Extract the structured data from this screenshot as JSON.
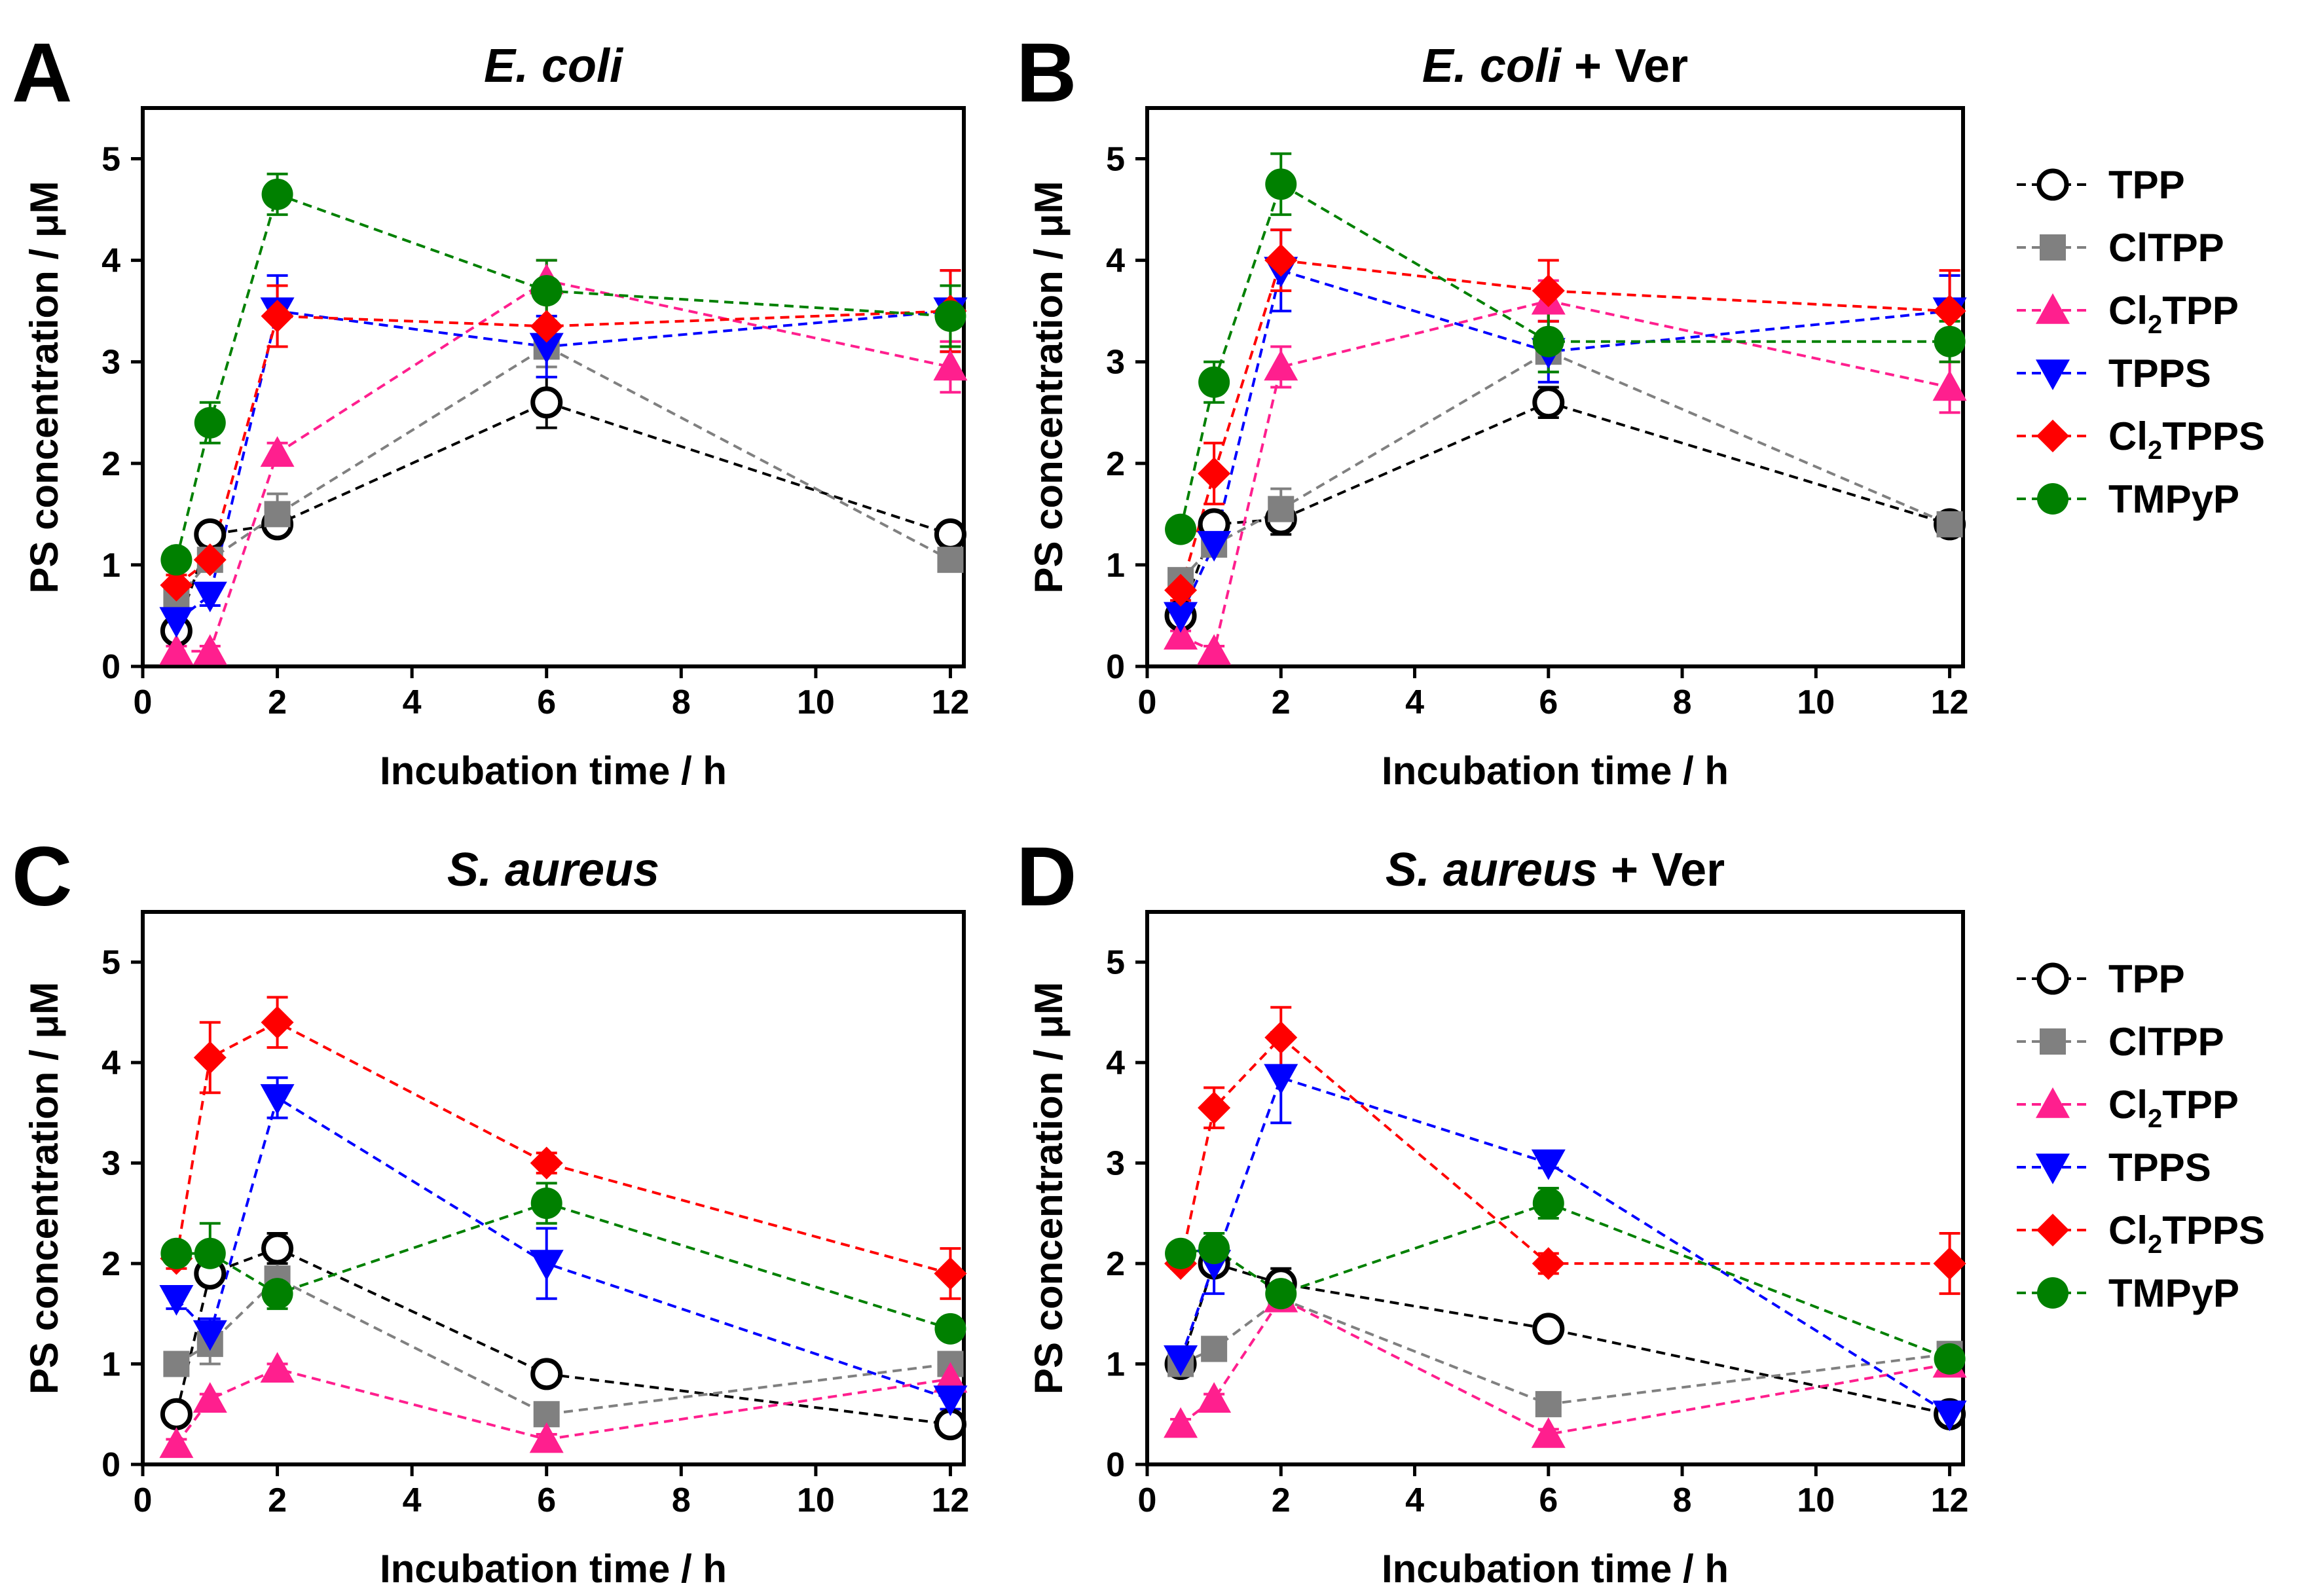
{
  "chart_data": [
    {
      "type": "line",
      "panel_letter": "A",
      "title": {
        "italic": "E. coli",
        "normal": ""
      },
      "xlabel": "Incubation time / h",
      "ylabel": "PS concentration / μM",
      "xlim": [
        0,
        12.2
      ],
      "ylim": [
        0,
        5.5
      ],
      "xticks": [
        0,
        2,
        4,
        6,
        8,
        10,
        12
      ],
      "xtick_labels": [
        "0",
        "2",
        "4",
        "6",
        "8",
        "10",
        "12"
      ],
      "yticks": [
        0,
        1,
        2,
        3,
        4,
        5
      ],
      "ytick_labels": [
        "0",
        "1",
        "2",
        "3",
        "4",
        "5"
      ],
      "x": [
        0.5,
        1,
        2,
        6,
        12
      ],
      "series": [
        {
          "name": "TPP",
          "values": [
            0.35,
            1.3,
            1.4,
            2.6,
            1.3
          ],
          "errors": [
            0.1,
            0.1,
            0.1,
            0.25,
            0.05
          ]
        },
        {
          "name": "ClTPP",
          "values": [
            0.65,
            1.05,
            1.5,
            3.15,
            1.05
          ],
          "errors": [
            0.1,
            0.1,
            0.2,
            0.2,
            0.05
          ]
        },
        {
          "name": "Cl2TPP",
          "values": [
            0.15,
            0.15,
            2.1,
            3.8,
            2.95
          ],
          "errors": [
            0.05,
            0.05,
            0.1,
            0.2,
            0.25
          ]
        },
        {
          "name": "TPPS",
          "values": [
            0.45,
            0.7,
            3.5,
            3.15,
            3.5
          ],
          "errors": [
            0.1,
            0.1,
            0.35,
            0.3,
            0.4
          ]
        },
        {
          "name": "Cl2TPPS",
          "values": [
            0.8,
            1.05,
            3.45,
            3.35,
            3.5
          ],
          "errors": [
            0.1,
            0.1,
            0.3,
            0.3,
            0.4
          ]
        },
        {
          "name": "TMPyP",
          "values": [
            1.05,
            2.4,
            4.65,
            3.7,
            3.45
          ],
          "errors": [
            0.1,
            0.2,
            0.2,
            0.3,
            0.3
          ]
        }
      ]
    },
    {
      "type": "line",
      "panel_letter": "B",
      "title": {
        "italic": "E. coli",
        "normal": " + Ver"
      },
      "xlabel": "Incubation time / h",
      "ylabel": "PS concentration / μM",
      "xlim": [
        0,
        12.2
      ],
      "ylim": [
        0,
        5.5
      ],
      "xticks": [
        0,
        2,
        4,
        6,
        8,
        10,
        12
      ],
      "xtick_labels": [
        "0",
        "2",
        "4",
        "6",
        "8",
        "10",
        "12"
      ],
      "yticks": [
        0,
        1,
        2,
        3,
        4,
        5
      ],
      "ytick_labels": [
        "0",
        "1",
        "2",
        "3",
        "4",
        "5"
      ],
      "x": [
        0.5,
        1,
        2,
        6,
        12
      ],
      "series": [
        {
          "name": "TPP",
          "values": [
            0.5,
            1.4,
            1.45,
            2.6,
            1.4
          ],
          "errors": [
            0.1,
            0.1,
            0.15,
            0.15,
            0.05
          ]
        },
        {
          "name": "ClTPP",
          "values": [
            0.85,
            1.2,
            1.55,
            3.1,
            1.4
          ],
          "errors": [
            0.1,
            0.1,
            0.2,
            0.2,
            0.05
          ]
        },
        {
          "name": "Cl2TPP",
          "values": [
            0.3,
            0.15,
            2.95,
            3.6,
            2.75
          ],
          "errors": [
            0.05,
            0.05,
            0.2,
            0.2,
            0.25
          ]
        },
        {
          "name": "TPPS",
          "values": [
            0.5,
            1.2,
            3.9,
            3.1,
            3.5
          ],
          "errors": [
            0.1,
            0.1,
            0.4,
            0.3,
            0.35
          ]
        },
        {
          "name": "Cl2TPPS",
          "values": [
            0.75,
            1.9,
            4.0,
            3.7,
            3.5
          ],
          "errors": [
            0.1,
            0.3,
            0.3,
            0.3,
            0.4
          ]
        },
        {
          "name": "TMPyP",
          "values": [
            1.35,
            2.8,
            4.75,
            3.2,
            3.2
          ],
          "errors": [
            0.1,
            0.2,
            0.3,
            0.3,
            0.2
          ]
        }
      ]
    },
    {
      "type": "line",
      "panel_letter": "C",
      "title": {
        "italic": "S. aureus",
        "normal": ""
      },
      "xlabel": "Incubation time / h",
      "ylabel": "PS concentration / μM",
      "xlim": [
        0,
        12.2
      ],
      "ylim": [
        0,
        5.5
      ],
      "xticks": [
        0,
        2,
        4,
        6,
        8,
        10,
        12
      ],
      "xtick_labels": [
        "0",
        "2",
        "4",
        "6",
        "8",
        "10",
        "12"
      ],
      "yticks": [
        0,
        1,
        2,
        3,
        4,
        5
      ],
      "ytick_labels": [
        "0",
        "1",
        "2",
        "3",
        "4",
        "5"
      ],
      "x": [
        0.5,
        1,
        2,
        6,
        12
      ],
      "series": [
        {
          "name": "TPP",
          "values": [
            0.5,
            1.9,
            2.15,
            0.9,
            0.4
          ],
          "errors": [
            0.05,
            0.1,
            0.15,
            0.05,
            0.05
          ]
        },
        {
          "name": "ClTPP",
          "values": [
            1.0,
            1.2,
            1.85,
            0.5,
            1.0
          ],
          "errors": [
            0.05,
            0.2,
            0.2,
            0.05,
            0.05
          ]
        },
        {
          "name": "Cl2TPP",
          "values": [
            0.2,
            0.65,
            0.95,
            0.25,
            0.85
          ],
          "errors": [
            0.05,
            0.05,
            0.05,
            0.05,
            0.1
          ]
        },
        {
          "name": "TPPS",
          "values": [
            1.65,
            1.3,
            3.65,
            2.0,
            0.65
          ],
          "errors": [
            0.1,
            0.15,
            0.2,
            0.35,
            0.1
          ]
        },
        {
          "name": "Cl2TPPS",
          "values": [
            2.05,
            4.05,
            4.4,
            3.0,
            1.9
          ],
          "errors": [
            0.1,
            0.35,
            0.25,
            0.1,
            0.25
          ]
        },
        {
          "name": "TMPyP",
          "values": [
            2.1,
            2.1,
            1.7,
            2.6,
            1.35
          ],
          "errors": [
            0.05,
            0.3,
            0.15,
            0.2,
            0.1
          ]
        }
      ]
    },
    {
      "type": "line",
      "panel_letter": "D",
      "title": {
        "italic": "S. aureus",
        "normal": " + Ver"
      },
      "xlabel": "Incubation time / h",
      "ylabel": "PS concentration / μM",
      "xlim": [
        0,
        12.2
      ],
      "ylim": [
        0,
        5.5
      ],
      "xticks": [
        0,
        2,
        4,
        6,
        8,
        10,
        12
      ],
      "xtick_labels": [
        "0",
        "2",
        "4",
        "6",
        "8",
        "10",
        "12"
      ],
      "yticks": [
        0,
        1,
        2,
        3,
        4,
        5
      ],
      "ytick_labels": [
        "0",
        "1",
        "2",
        "3",
        "4",
        "5"
      ],
      "x": [
        0.5,
        1,
        2,
        6,
        12
      ],
      "series": [
        {
          "name": "TPP",
          "values": [
            1.0,
            2.0,
            1.8,
            1.35,
            0.5
          ],
          "errors": [
            0.05,
            0.1,
            0.15,
            0.05,
            0.05
          ]
        },
        {
          "name": "ClTPP",
          "values": [
            1.0,
            1.15,
            1.65,
            0.6,
            1.1
          ],
          "errors": [
            0.05,
            0.05,
            0.1,
            0.05,
            0.05
          ]
        },
        {
          "name": "Cl2TPP",
          "values": [
            0.4,
            0.65,
            1.65,
            0.3,
            1.0
          ],
          "errors": [
            0.05,
            0.05,
            0.1,
            0.05,
            0.1
          ]
        },
        {
          "name": "TPPS",
          "values": [
            1.05,
            2.0,
            3.85,
            3.0,
            0.5
          ],
          "errors": [
            0.05,
            0.3,
            0.45,
            0.05,
            0.05
          ]
        },
        {
          "name": "Cl2TPPS",
          "values": [
            2.0,
            3.55,
            4.25,
            2.0,
            2.0
          ],
          "errors": [
            0.05,
            0.2,
            0.3,
            0.1,
            0.3
          ]
        },
        {
          "name": "TMPyP",
          "values": [
            2.1,
            2.15,
            1.7,
            2.6,
            1.05
          ],
          "errors": [
            0.05,
            0.15,
            0.15,
            0.15,
            0.05
          ]
        }
      ]
    }
  ],
  "legend": {
    "placement": "right of each figure row",
    "entries": [
      {
        "key": "TPP",
        "label_main": "TPP",
        "label_sub": "",
        "label_tail": "",
        "color": "#000000",
        "marker": "open-circle"
      },
      {
        "key": "ClTPP",
        "label_main": "ClTPP",
        "label_sub": "",
        "label_tail": "",
        "color": "#808080",
        "marker": "square"
      },
      {
        "key": "Cl2TPP",
        "label_main": "Cl",
        "label_sub": "2",
        "label_tail": "TPP",
        "color": "#ff1f8e",
        "marker": "triangle-up"
      },
      {
        "key": "TPPS",
        "label_main": "TPPS",
        "label_sub": "",
        "label_tail": "",
        "color": "#0000ff",
        "marker": "triangle-down"
      },
      {
        "key": "Cl2TPPS",
        "label_main": "Cl",
        "label_sub": "2",
        "label_tail": "TPPS",
        "color": "#ff0000",
        "marker": "diamond"
      },
      {
        "key": "TMPyP",
        "label_main": "TMPyP",
        "label_sub": "",
        "label_tail": "",
        "color": "#008000",
        "marker": "filled-circle"
      }
    ]
  }
}
